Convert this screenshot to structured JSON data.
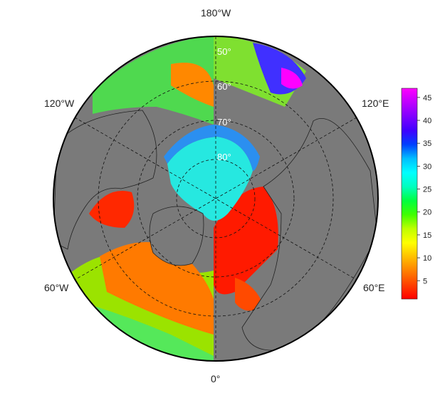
{
  "map": {
    "projection": "north-polar-stereographic",
    "ocean_color": "#7a7a7a",
    "land_color": "#7a7a7a",
    "border_color": "#222222",
    "longitude_labels": {
      "top": "180°W",
      "upper_left": "120°W",
      "upper_right": "120°E",
      "lower_left": "60°W",
      "lower_right": "60°E",
      "bottom": "0°"
    },
    "latitude_labels": [
      "50°",
      "60°",
      "70°",
      "80°"
    ]
  },
  "colorbar": {
    "min": 1,
    "max": 47,
    "ticks": [
      5,
      10,
      15,
      20,
      25,
      30,
      35,
      40,
      45
    ],
    "tick_labels": [
      "5",
      "10",
      "15",
      "20",
      "25",
      "30",
      "35",
      "40",
      "45"
    ],
    "colors": [
      "#ff0000",
      "#ff4000",
      "#ff8000",
      "#ffbf00",
      "#ffff00",
      "#bfff00",
      "#40ff00",
      "#00ff40",
      "#00ffbf",
      "#00ffff",
      "#00bfff",
      "#0040ff",
      "#4000ff",
      "#8000ff",
      "#bf00ff",
      "#ff00ff"
    ]
  }
}
